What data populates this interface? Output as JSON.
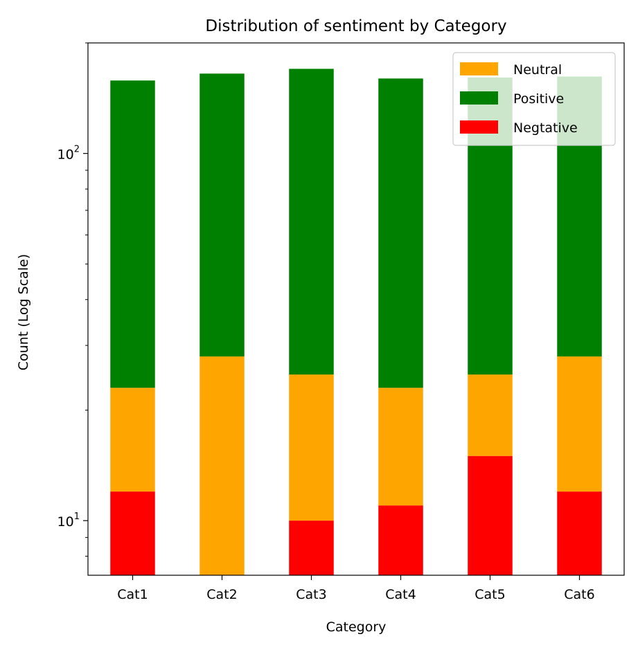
{
  "chart_data": {
    "type": "bar",
    "stacked": true,
    "title": "Distribution of sentiment by Category",
    "xlabel": "Category",
    "ylabel": "Count (Log Scale)",
    "yscale": "log",
    "ylim": [
      7.1,
      200
    ],
    "yticks": [
      {
        "value": 10,
        "base": "10",
        "exp": "1"
      },
      {
        "value": 100,
        "base": "10",
        "exp": "2"
      }
    ],
    "categories": [
      "Cat1",
      "Cat2",
      "Cat3",
      "Cat4",
      "Cat5",
      "Cat6"
    ],
    "series": [
      {
        "name": "Negtative",
        "color": "#ff0000",
        "values": [
          12,
          0,
          10,
          11,
          15,
          12
        ]
      },
      {
        "name": "Neutral",
        "color": "#ffa500",
        "values": [
          11,
          28,
          15,
          12,
          10,
          16
        ]
      },
      {
        "name": "Positive",
        "color": "#008000",
        "values": [
          135,
          137,
          145,
          137,
          136,
          134
        ]
      }
    ],
    "legend": {
      "position": "top-right",
      "order": [
        "Neutral",
        "Positive",
        "Negtative"
      ]
    },
    "grid": false
  }
}
